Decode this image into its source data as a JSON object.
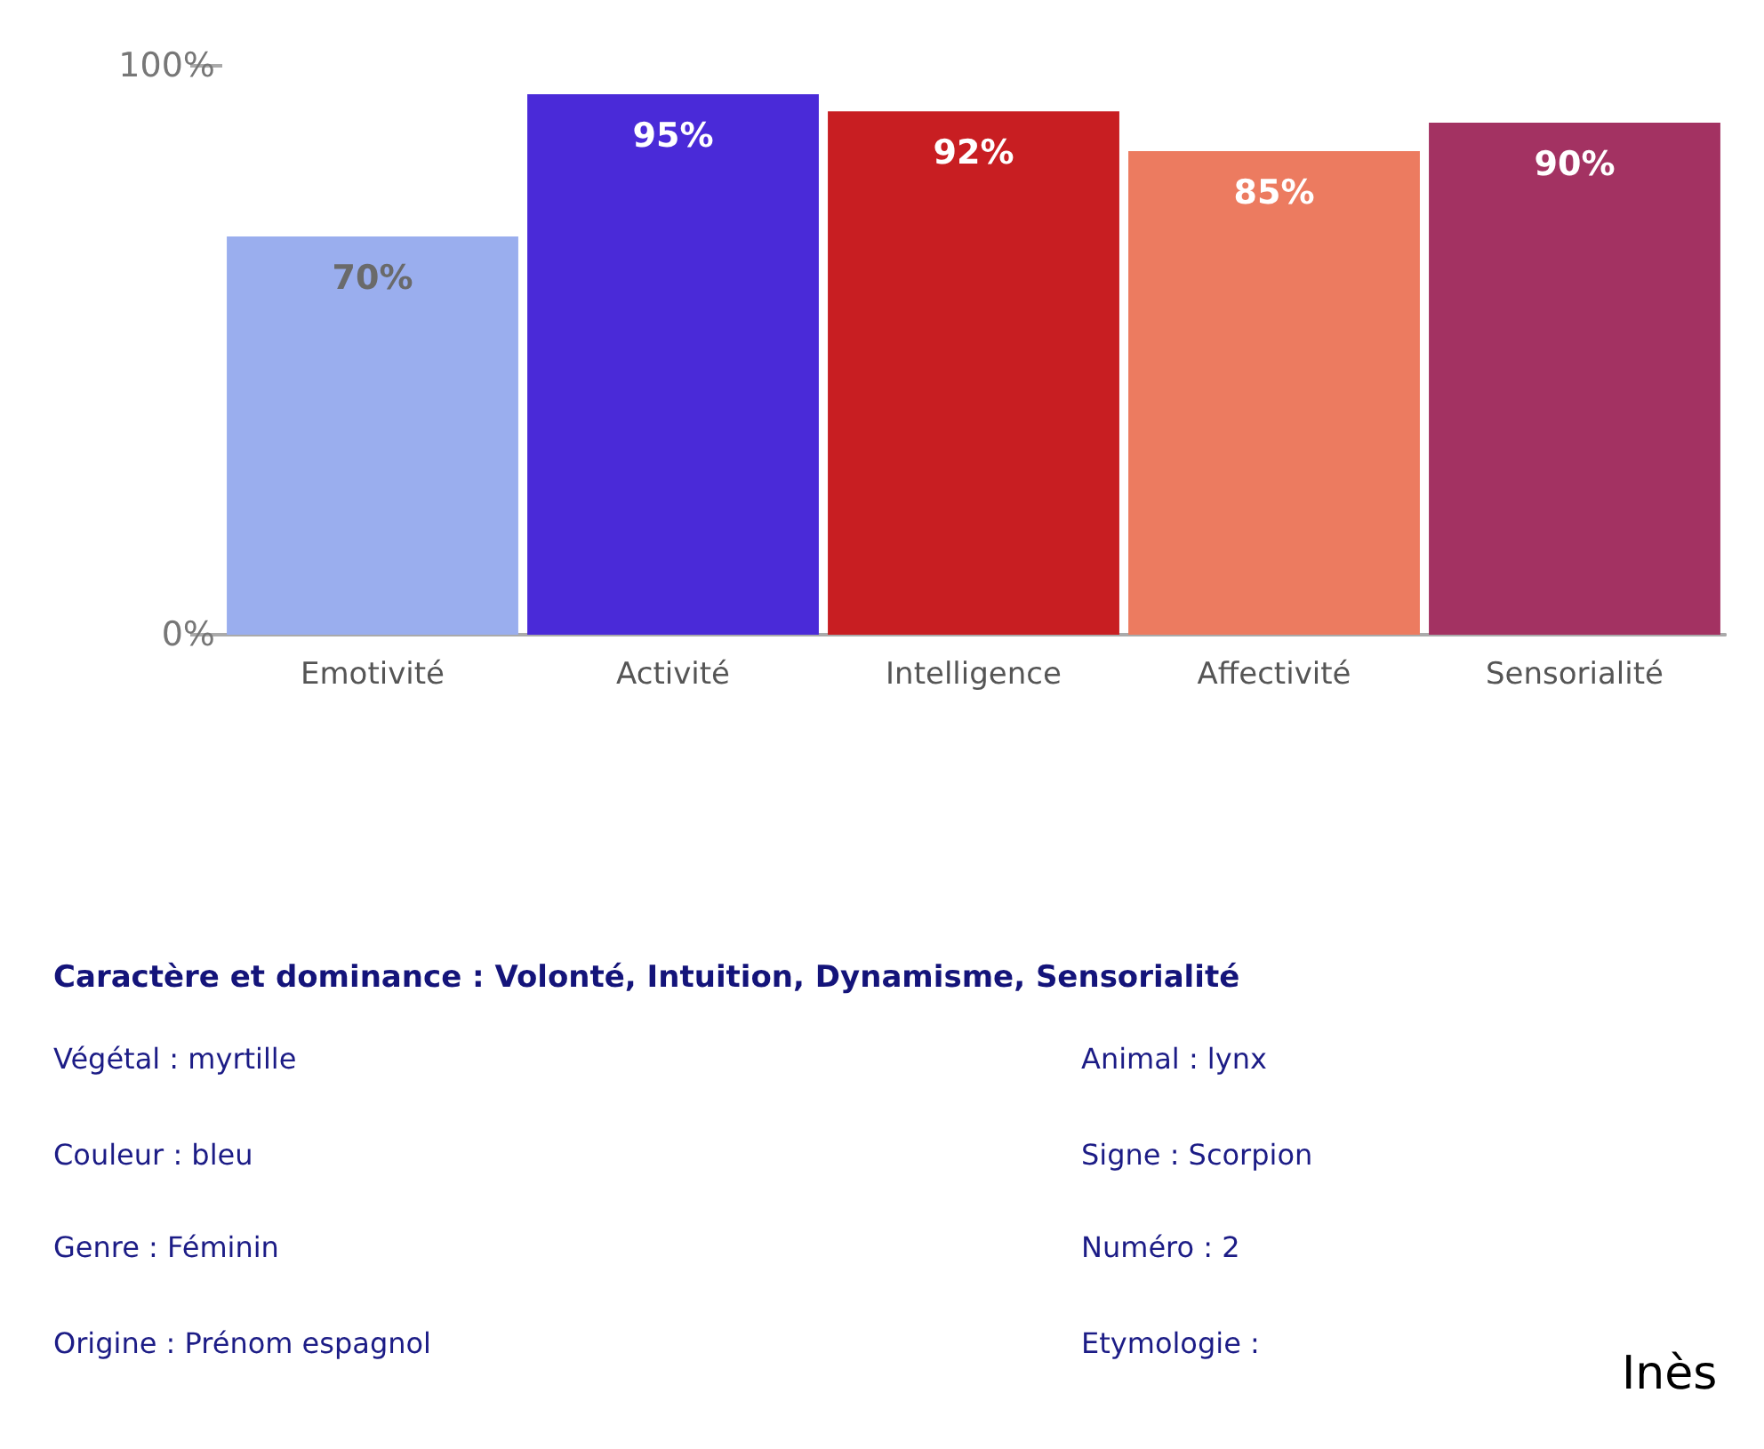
{
  "chart_data": {
    "type": "bar",
    "categories": [
      "Emotivité",
      "Activité",
      "Intelligence",
      "Affectivité",
      "Sensorialité"
    ],
    "values": [
      70,
      95,
      92,
      85,
      90
    ],
    "colors": [
      "#9aaeee",
      "#4a2ad8",
      "#c81e22",
      "#ec7b60",
      "#a33262"
    ],
    "ylim": [
      0,
      100
    ],
    "yticks": [
      {
        "value": 0,
        "label": "0%"
      },
      {
        "value": 100,
        "label": "100%"
      }
    ],
    "value_labels": [
      "70%",
      "95%",
      "92%",
      "85%",
      "90%"
    ],
    "annotations": [
      "Caractère et dominance : Volonté, Intuition, Dynamisme, Sensorialité",
      "Végétal : myrtille",
      "Animal : lynx",
      "Couleur : bleu",
      "Signe : Scorpion",
      "Genre : Féminin",
      "Numéro : 2",
      "Origine : Prénom espagnol",
      "Etymologie :",
      "Inès"
    ]
  }
}
